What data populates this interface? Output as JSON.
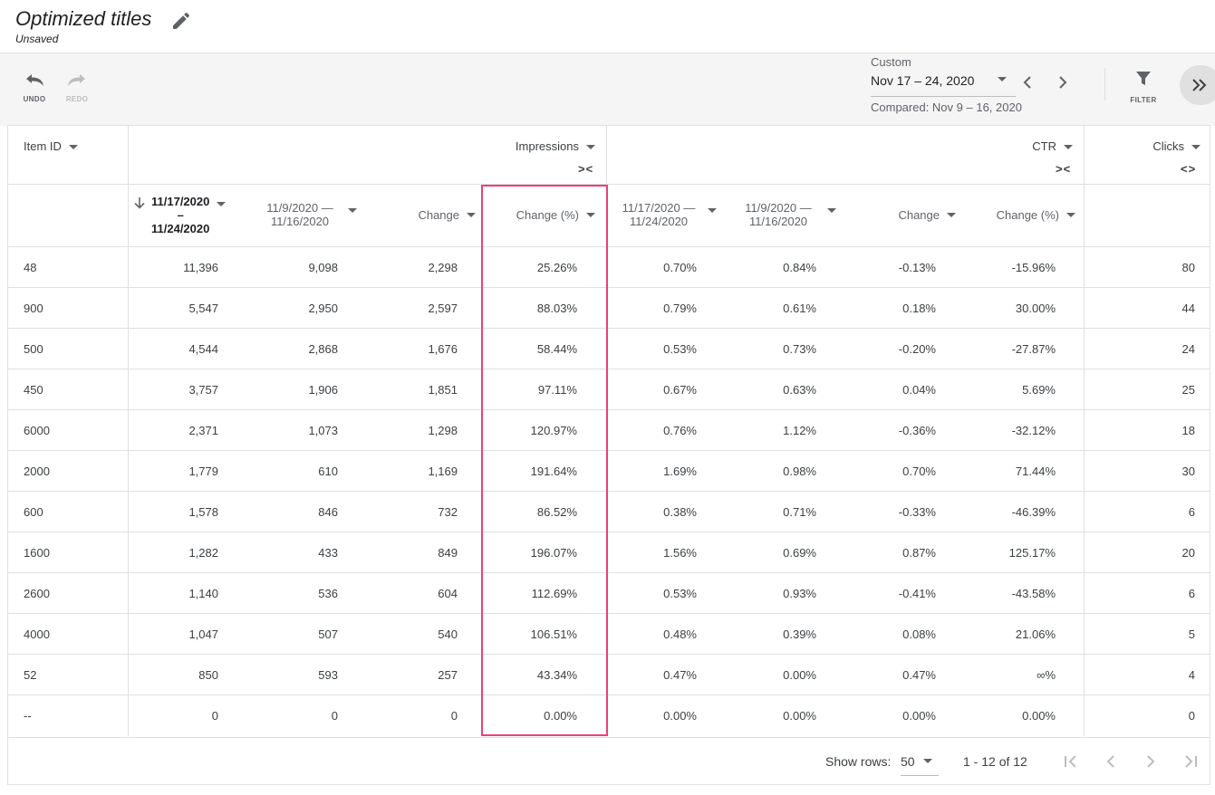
{
  "header": {
    "title": "Optimized titles",
    "subtitle": "Unsaved"
  },
  "toolbar": {
    "undo_label": "UNDO",
    "redo_label": "REDO",
    "date_label": "Custom",
    "date_range": "Nov 17 – 24, 2020",
    "compared": "Compared: Nov 9 – 16, 2020",
    "filter_label": "FILTER"
  },
  "table": {
    "item_id_label": "Item ID",
    "groups": {
      "impressions": "Impressions",
      "ctr": "CTR",
      "clicks": "Clicks"
    },
    "collapse_glyph": "><",
    "expand_glyph": "<>",
    "sub_headers": {
      "imp_current_a": "11/17/2020",
      "imp_current_b": "–",
      "imp_current_c": "11/24/2020",
      "imp_prev": "11/9/2020 — 11/16/2020",
      "imp_change": "Change",
      "imp_change_pct": "Change (%)",
      "ctr_current": "11/17/2020 — 11/24/2020",
      "ctr_prev": "11/9/2020 — 11/16/2020",
      "ctr_change": "Change",
      "ctr_change_pct": "Change (%)"
    },
    "rows": [
      [
        "48",
        "11,396",
        "9,098",
        "2,298",
        "25.26%",
        "0.70%",
        "0.84%",
        "-0.13%",
        "-15.96%",
        "80"
      ],
      [
        "900",
        "5,547",
        "2,950",
        "2,597",
        "88.03%",
        "0.79%",
        "0.61%",
        "0.18%",
        "30.00%",
        "44"
      ],
      [
        "500",
        "4,544",
        "2,868",
        "1,676",
        "58.44%",
        "0.53%",
        "0.73%",
        "-0.20%",
        "-27.87%",
        "24"
      ],
      [
        "450",
        "3,757",
        "1,906",
        "1,851",
        "97.11%",
        "0.67%",
        "0.63%",
        "0.04%",
        "5.69%",
        "25"
      ],
      [
        "6000",
        "2,371",
        "1,073",
        "1,298",
        "120.97%",
        "0.76%",
        "1.12%",
        "-0.36%",
        "-32.12%",
        "18"
      ],
      [
        "2000",
        "1,779",
        "610",
        "1,169",
        "191.64%",
        "1.69%",
        "0.98%",
        "0.70%",
        "71.44%",
        "30"
      ],
      [
        "600",
        "1,578",
        "846",
        "732",
        "86.52%",
        "0.38%",
        "0.71%",
        "-0.33%",
        "-46.39%",
        "6"
      ],
      [
        "1600",
        "1,282",
        "433",
        "849",
        "196.07%",
        "1.56%",
        "0.69%",
        "0.87%",
        "125.17%",
        "20"
      ],
      [
        "2600",
        "1,140",
        "536",
        "604",
        "112.69%",
        "0.53%",
        "0.93%",
        "-0.41%",
        "-43.58%",
        "6"
      ],
      [
        "4000",
        "1,047",
        "507",
        "540",
        "106.51%",
        "0.48%",
        "0.39%",
        "0.08%",
        "21.06%",
        "5"
      ],
      [
        "52",
        "850",
        "593",
        "257",
        "43.34%",
        "0.47%",
        "0.00%",
        "0.47%",
        "∞%",
        "4"
      ],
      [
        "--",
        "0",
        "0",
        "0",
        "0.00%",
        "0.00%",
        "0.00%",
        "0.00%",
        "0.00%",
        "0"
      ]
    ]
  },
  "pager": {
    "show_rows_label": "Show rows:",
    "rows_value": "50",
    "range": "1 - 12 of 12"
  },
  "colors": {
    "highlight": "#ec407a"
  }
}
